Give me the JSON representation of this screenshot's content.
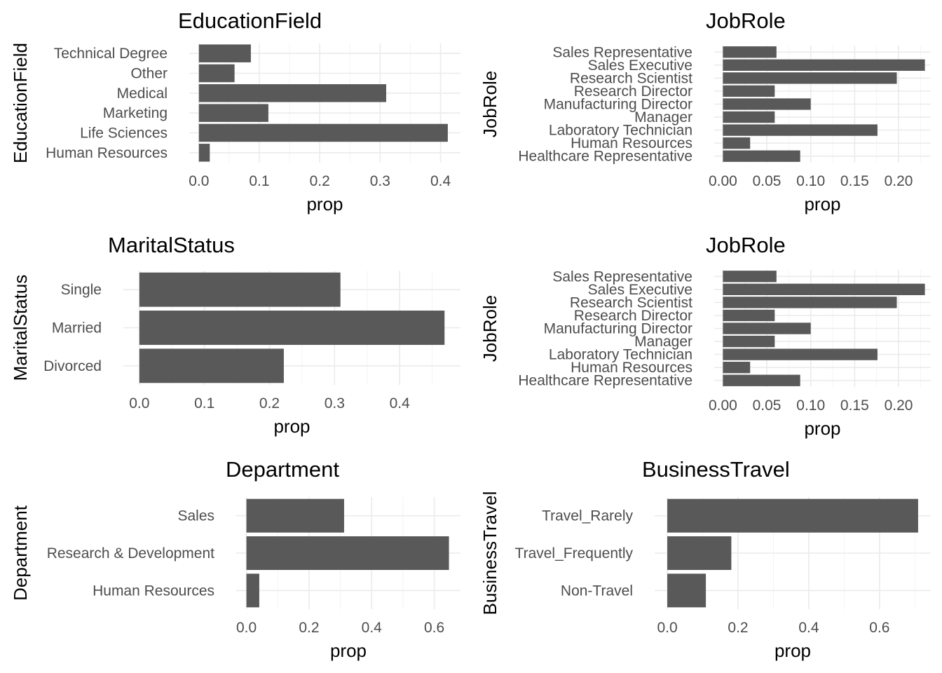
{
  "chart_data": [
    {
      "type": "bar",
      "orientation": "horizontal",
      "title": "EducationField",
      "xlabel": "prop",
      "ylabel": "EducationField",
      "categories": [
        "Human Resources",
        "Life Sciences",
        "Marketing",
        "Medical",
        "Other",
        "Technical Degree"
      ],
      "values": [
        0.018,
        0.412,
        0.115,
        0.31,
        0.059,
        0.086
      ],
      "xlim": [
        -0.016,
        0.433
      ],
      "xticks": [
        0.0,
        0.1,
        0.2,
        0.3,
        0.4
      ],
      "xtick_labels": [
        "0.0",
        "0.1",
        "0.2",
        "0.3",
        "0.4"
      ],
      "grid": true
    },
    {
      "type": "bar",
      "orientation": "horizontal",
      "title": "JobRole",
      "xlabel": "prop",
      "ylabel": "JobRole",
      "categories": [
        "Healthcare Representative",
        "Human Resources",
        "Laboratory Technician",
        "Manager",
        "Manufacturing Director",
        "Research Director",
        "Research Scientist",
        "Sales Executive",
        "Sales Representative"
      ],
      "values": [
        0.088,
        0.031,
        0.176,
        0.059,
        0.1,
        0.059,
        0.198,
        0.23,
        0.061
      ],
      "xlim": [
        -0.0099,
        0.2367
      ],
      "xticks": [
        0.0,
        0.05,
        0.1,
        0.15,
        0.2
      ],
      "xtick_labels": [
        "0.00",
        "0.05",
        "0.10",
        "0.15",
        "0.20"
      ],
      "grid": true
    },
    {
      "type": "bar",
      "orientation": "horizontal",
      "title": "MaritalStatus",
      "xlabel": "prop",
      "ylabel": "MaritalStatus",
      "categories": [
        "Divorced",
        "Married",
        "Single"
      ],
      "values": [
        0.222,
        0.469,
        0.309
      ],
      "xlim": [
        -0.0246,
        0.4935
      ],
      "xticks": [
        0.0,
        0.1,
        0.2,
        0.3,
        0.4
      ],
      "xtick_labels": [
        "0.0",
        "0.1",
        "0.2",
        "0.3",
        "0.4"
      ],
      "grid": true
    },
    {
      "type": "bar",
      "orientation": "horizontal",
      "title": "JobRole",
      "xlabel": "prop",
      "ylabel": "JobRole",
      "categories": [
        "Healthcare Representative",
        "Human Resources",
        "Laboratory Technician",
        "Manager",
        "Manufacturing Director",
        "Research Director",
        "Research Scientist",
        "Sales Executive",
        "Sales Representative"
      ],
      "values": [
        0.088,
        0.031,
        0.176,
        0.059,
        0.1,
        0.059,
        0.198,
        0.23,
        0.061
      ],
      "xlim": [
        -0.0099,
        0.2367
      ],
      "xticks": [
        0.0,
        0.05,
        0.1,
        0.15,
        0.2
      ],
      "xtick_labels": [
        "0.00",
        "0.05",
        "0.10",
        "0.15",
        "0.20"
      ],
      "grid": true
    },
    {
      "type": "bar",
      "orientation": "horizontal",
      "title": "Department",
      "xlabel": "prop",
      "ylabel": "Department",
      "categories": [
        "Human Resources",
        "Research & Development",
        "Sales"
      ],
      "values": [
        0.041,
        0.647,
        0.312
      ],
      "xlim": [
        -0.0327,
        0.6838
      ],
      "xticks": [
        0.0,
        0.2,
        0.4,
        0.6
      ],
      "xtick_labels": [
        "0.0",
        "0.2",
        "0.4",
        "0.6"
      ],
      "grid": true
    },
    {
      "type": "bar",
      "orientation": "horizontal",
      "title": "BusinessTravel",
      "xlabel": "prop",
      "ylabel": "BusinessTravel",
      "categories": [
        "Non-Travel",
        "Travel_Frequently",
        "Travel_Rarely"
      ],
      "values": [
        0.109,
        0.181,
        0.709
      ],
      "xlim": [
        -0.0358,
        0.7448
      ],
      "xticks": [
        0.0,
        0.2,
        0.4,
        0.6
      ],
      "xtick_labels": [
        "0.0",
        "0.2",
        "0.4",
        "0.6"
      ],
      "grid": true
    }
  ],
  "colors": {
    "bar": "#595959",
    "grid_major": "#ebebeb",
    "grid_minor": "#f3f3f3",
    "tick_text": "#4d4d4d"
  }
}
